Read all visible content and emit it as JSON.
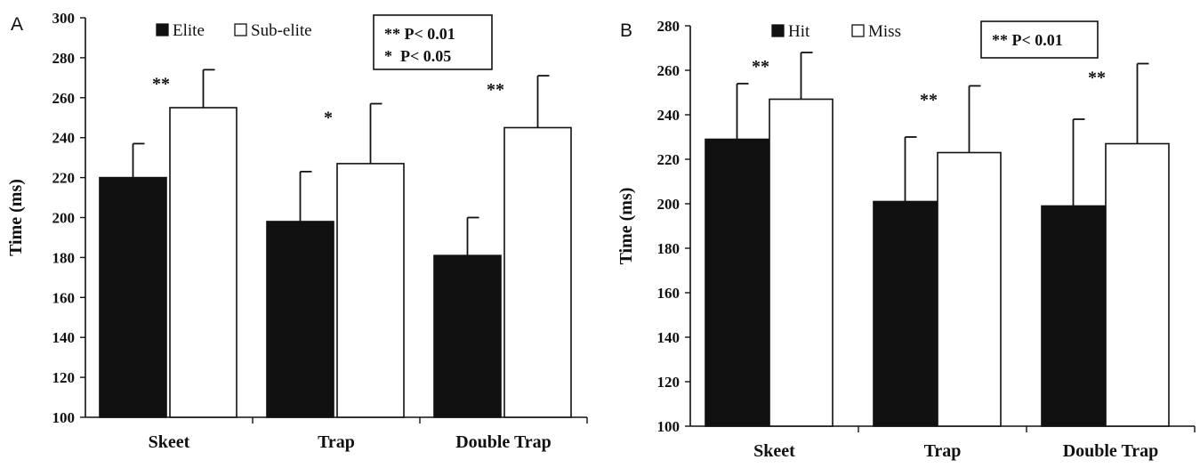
{
  "chart_data": [
    {
      "type": "bar",
      "panel_label": "A",
      "categories": [
        "Skeet",
        "Trap",
        "Double Trap"
      ],
      "ylabel": "Time (ms)",
      "xlabel": "",
      "ylim": [
        100,
        300
      ],
      "yticks": [
        100,
        120,
        140,
        160,
        180,
        200,
        220,
        240,
        260,
        280,
        300
      ],
      "series": [
        {
          "name": "Elite",
          "color": "#111111",
          "values": [
            220,
            198,
            181
          ],
          "errors": [
            17,
            25,
            19
          ]
        },
        {
          "name": "Sub-elite",
          "color": "#ffffff",
          "values": [
            255,
            227,
            245
          ],
          "errors": [
            19,
            30,
            26
          ]
        }
      ],
      "significance": [
        "**",
        "*",
        "**"
      ],
      "note_lines": [
        "** P< 0.01",
        "*  P< 0.05"
      ],
      "legend_position": "top-left"
    },
    {
      "type": "bar",
      "panel_label": "B",
      "categories": [
        "Skeet",
        "Trap",
        "Double Trap"
      ],
      "ylabel": "Time (ms)",
      "xlabel": "",
      "ylim": [
        100,
        280
      ],
      "yticks": [
        100,
        120,
        140,
        160,
        180,
        200,
        220,
        240,
        260,
        280
      ],
      "series": [
        {
          "name": "Hit",
          "color": "#111111",
          "values": [
            229,
            201,
            199
          ],
          "errors": [
            25,
            29,
            39
          ]
        },
        {
          "name": "Miss",
          "color": "#ffffff",
          "values": [
            247,
            223,
            227
          ],
          "errors": [
            21,
            30,
            36
          ]
        }
      ],
      "significance": [
        "**",
        "**",
        "**"
      ],
      "note_lines": [
        "** P< 0.01"
      ],
      "legend_position": "top-left"
    }
  ]
}
